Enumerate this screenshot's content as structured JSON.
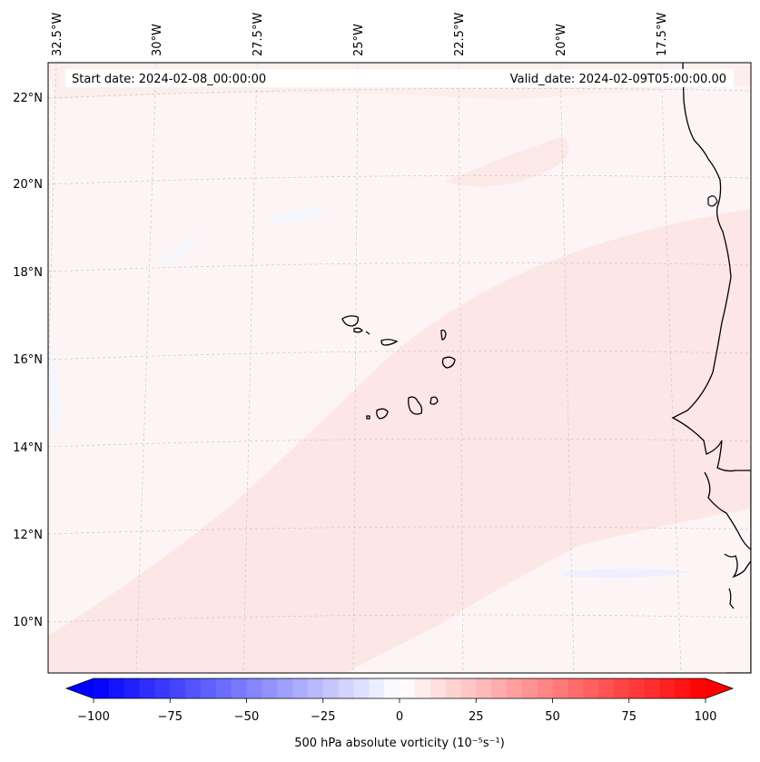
{
  "map": {
    "start_date": "Start date: 2024-02-08_00:00:00",
    "valid_date": "Valid_date: 2024-02-09T05:00:00.00",
    "lon_labels": [
      "32.5°W",
      "30°W",
      "27.5°W",
      "25°W",
      "22.5°W",
      "20°W",
      "17.5°W"
    ],
    "lat_labels": [
      "22°N",
      "20°N",
      "18°N",
      "16°N",
      "14°N",
      "12°N",
      "10°N"
    ]
  },
  "colorbar": {
    "label": "500 hPa absolute vorticity (10⁻⁵s⁻¹)",
    "ticks": [
      "−100",
      "−75",
      "−50",
      "−25",
      "0",
      "25",
      "50",
      "75",
      "100"
    ],
    "min": -100,
    "max": 100,
    "step": 5,
    "low_color": "#0000ff",
    "high_color": "#ff0000",
    "mid_color": "#ffffff"
  },
  "colors": {
    "background_field": "#fdf5f5",
    "positive_band": "#fde6e6",
    "negative_patch": "#f4f6ff",
    "coastline": "#000000",
    "gridline": "#c8c8c8"
  }
}
